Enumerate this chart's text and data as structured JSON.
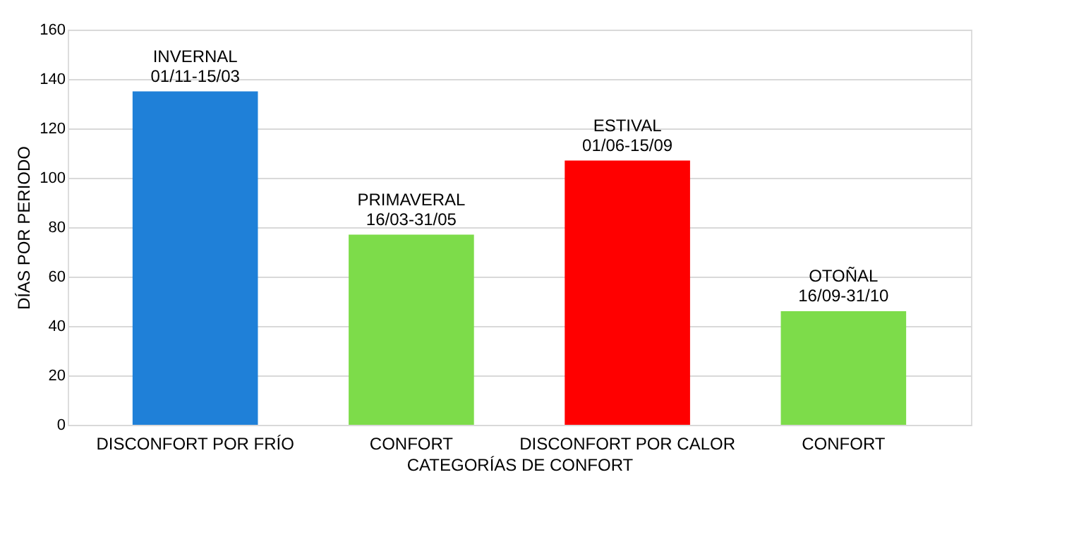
{
  "chart_data": {
    "type": "bar",
    "xlabel": "CATEGORÍAS DE CONFORT",
    "ylabel": "DÍAS POR PERIODO",
    "categories": [
      "DISCONFORT POR FRÍO",
      "CONFORT",
      "DISCONFORT POR CALOR",
      "CONFORT"
    ],
    "values": [
      135,
      77,
      107,
      46
    ],
    "colors": [
      "#1f80d8",
      "#7ddc4a",
      "#ff0000",
      "#7ddc4a"
    ],
    "ylim": [
      0,
      160
    ],
    "yticks": [
      0,
      20,
      40,
      60,
      80,
      100,
      120,
      140,
      160
    ],
    "grid": "y",
    "annotations": [
      "INVERNAL\n01/11-15/03",
      "PRIMAVERAL\n16/03-31/05",
      "ESTIVAL\n01/06-15/09",
      "OTOÑAL\n16/09-31/10"
    ]
  }
}
